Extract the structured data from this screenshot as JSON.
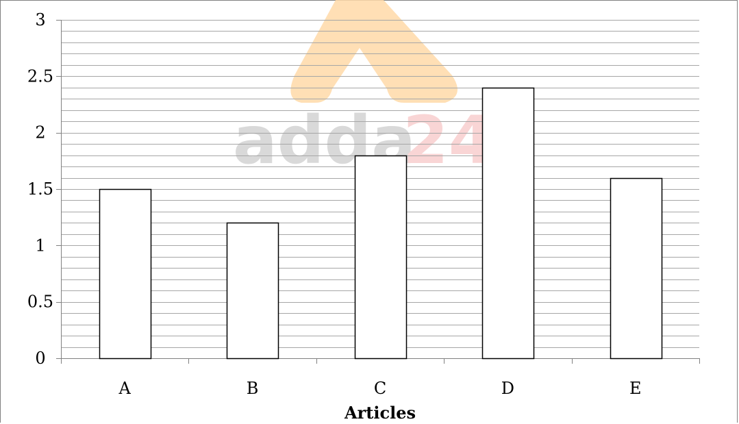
{
  "chart_data": {
    "type": "bar",
    "categories": [
      "A",
      "B",
      "C",
      "D",
      "E"
    ],
    "values": [
      1.5,
      1.2,
      1.8,
      2.4,
      1.6
    ],
    "title": "",
    "xlabel": "Articles",
    "ylabel": "",
    "ylim": [
      0,
      3
    ],
    "ytick_labels": [
      "0",
      "0.5",
      "1",
      "1.5",
      "2",
      "2.5",
      "3"
    ],
    "minor_gridlines": true,
    "bar_fill": "#ffffff",
    "bar_stroke": "#000000",
    "gridline_color": "#a6a6a6"
  },
  "watermark": {
    "text_main": "adda",
    "text_accent": "24",
    "main_color": "#d9d9d9",
    "accent_color": "#f9d5d5",
    "logo_color": "#ffd9a8"
  }
}
